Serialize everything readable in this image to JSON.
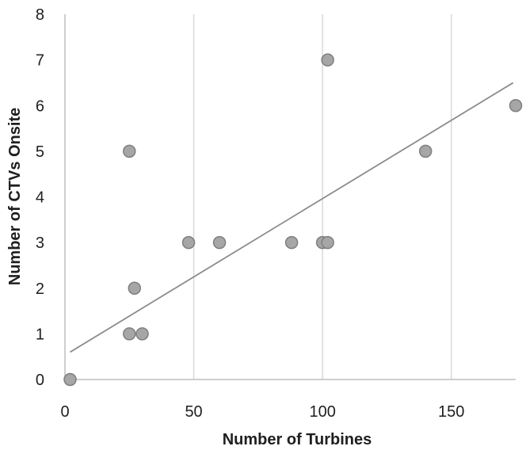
{
  "chart_data": {
    "type": "scatter",
    "title": "",
    "xlabel": "Number of Turbines",
    "ylabel": "Number of CTVs Onsite",
    "xlim": [
      0,
      175
    ],
    "ylim": [
      0,
      8
    ],
    "x_ticks": [
      0,
      50,
      100,
      150
    ],
    "y_ticks": [
      0,
      1,
      2,
      3,
      4,
      5,
      6,
      7,
      8
    ],
    "grid": "vertical gridlines only",
    "legend": "none",
    "points": [
      {
        "x": 2,
        "y": 0
      },
      {
        "x": 25,
        "y": 1
      },
      {
        "x": 25,
        "y": 5
      },
      {
        "x": 27,
        "y": 2
      },
      {
        "x": 30,
        "y": 1
      },
      {
        "x": 48,
        "y": 3
      },
      {
        "x": 60,
        "y": 3
      },
      {
        "x": 88,
        "y": 3
      },
      {
        "x": 100,
        "y": 3
      },
      {
        "x": 102,
        "y": 3
      },
      {
        "x": 102,
        "y": 7
      },
      {
        "x": 140,
        "y": 5
      },
      {
        "x": 175,
        "y": 6
      }
    ],
    "trendline": {
      "x": [
        2,
        174
      ],
      "y": [
        0.6,
        6.5
      ]
    },
    "colors": {
      "marker_fill": "#a6a6a6",
      "marker_stroke": "#7f7f7f",
      "trendline": "#8c8c8c",
      "gridline": "#d9d9d9",
      "axis": "#bfbfbf",
      "text": "#1f1f1f"
    }
  }
}
